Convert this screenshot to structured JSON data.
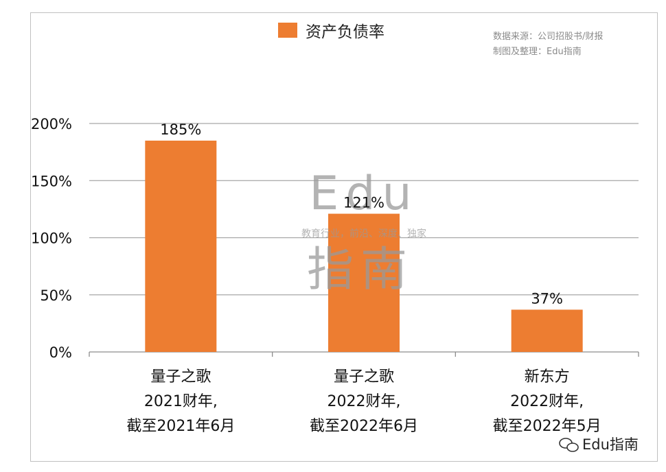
{
  "chart_data": {
    "type": "bar",
    "series": [
      {
        "name": "资产负债率",
        "values": [
          185,
          121,
          37
        ]
      }
    ],
    "categories": [
      [
        "量子之歌",
        "2021财年,",
        "截至2021年6月"
      ],
      [
        "量子之歌",
        "2022财年,",
        "截至2022年6月"
      ],
      [
        "新东方",
        "2022财年,",
        "截至2022年5月"
      ]
    ],
    "data_labels": [
      "185%",
      "121%",
      "37%"
    ],
    "ylim": [
      0,
      200
    ],
    "yticks": [
      "0%",
      "50%",
      "100%",
      "150%",
      "200%"
    ],
    "grid": true,
    "legend_position": "top",
    "colors": {
      "bar": "#ED7D31",
      "grid": "#a6a6a6"
    }
  },
  "source_note": {
    "line1": "数据来源：公司招股书/财报",
    "line2": "制图及整理：Edu指南"
  },
  "watermark": {
    "brand": "Edu",
    "slogan": "教育行业，前沿、深度、独家",
    "name": "指南"
  },
  "account": {
    "name": "Edu指南"
  }
}
